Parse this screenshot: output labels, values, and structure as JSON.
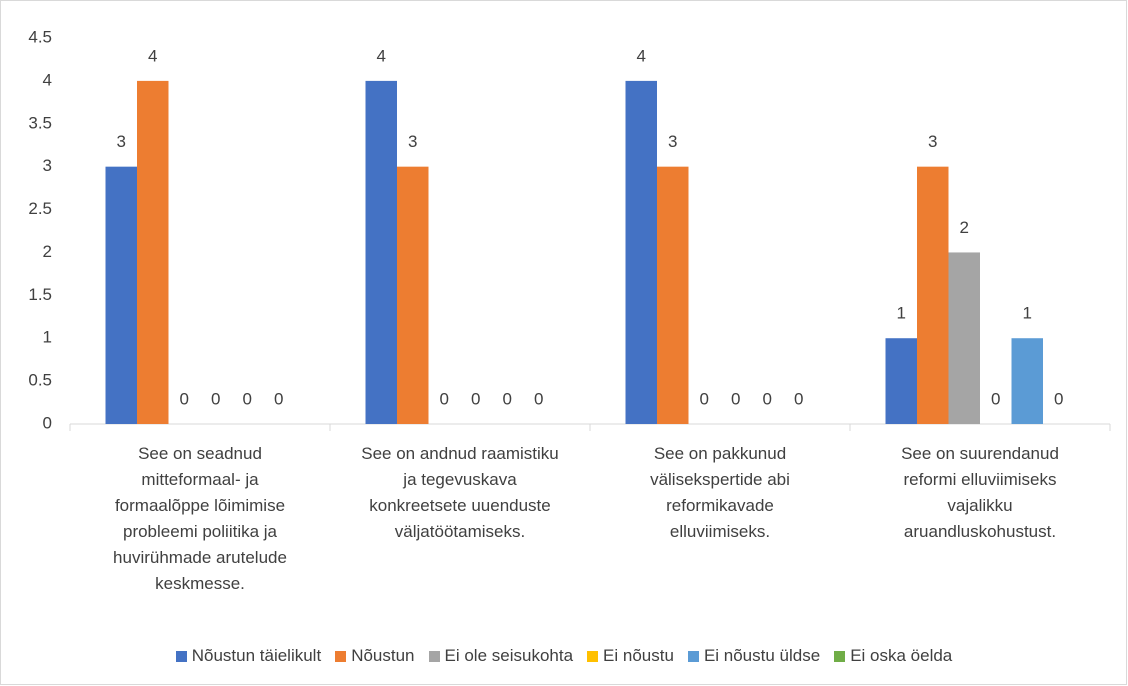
{
  "chart_data": {
    "type": "bar",
    "categories": [
      "See on seadnud mitteformaal- ja formaalõppe lõimimise probleemi poliitika ja huvirühmade arutelude keskmesse.",
      "See on andnud raamistiku ja tegevuskava konkreetsete uuenduste väljatöötamiseks.",
      "See on pakkunud välisekspertide abi reformikavade elluviimiseks.",
      "See on suurendanud reformi elluviimiseks vajalikku aruandluskohustust."
    ],
    "series": [
      {
        "name": "Nõustun täielikult",
        "color": "#4472c4",
        "values": [
          3,
          4,
          4,
          1
        ]
      },
      {
        "name": "Nõustun",
        "color": "#ed7d31",
        "values": [
          4,
          3,
          3,
          3
        ]
      },
      {
        "name": "Ei ole seisukohta",
        "color": "#a5a5a5",
        "values": [
          0,
          0,
          0,
          2
        ]
      },
      {
        "name": "Ei nõustu",
        "color": "#ffc000",
        "values": [
          0,
          0,
          0,
          0
        ]
      },
      {
        "name": "Ei nõustu üldse",
        "color": "#5b9bd5",
        "values": [
          0,
          0,
          0,
          1
        ]
      },
      {
        "name": "Ei oska öelda",
        "color": "#70ad47",
        "values": [
          0,
          0,
          0,
          0
        ]
      }
    ],
    "ylim": [
      0,
      4.5
    ],
    "yticks": [
      0,
      0.5,
      1,
      1.5,
      2,
      2.5,
      3,
      3.5,
      4,
      4.5
    ],
    "grid": false,
    "legend": "bottom"
  }
}
